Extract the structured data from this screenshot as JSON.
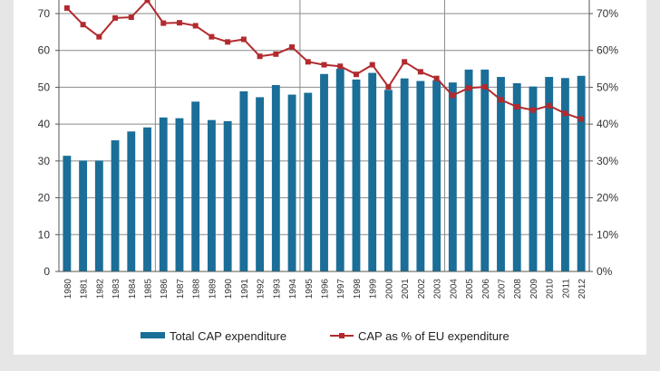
{
  "chart_data": {
    "type": "bar",
    "title": "",
    "xlabel": "",
    "ylabel": "",
    "categories": [
      "1980",
      "1981",
      "1982",
      "1983",
      "1984",
      "1985",
      "1986",
      "1987",
      "1988",
      "1989",
      "1990",
      "1991",
      "1992",
      "1993",
      "1994",
      "1995",
      "1996",
      "1997",
      "1998",
      "1999",
      "2000",
      "2001",
      "2002",
      "2003",
      "2004",
      "2005",
      "2006",
      "2007",
      "2008",
      "2009",
      "2010",
      "2011",
      "2012"
    ],
    "series": [
      {
        "name": "Total CAP expenditure",
        "type": "bar",
        "axis": "left",
        "color": "#1a6e97",
        "values": [
          31.4,
          30.1,
          30.1,
          35.6,
          38.0,
          39.1,
          41.8,
          41.6,
          46.1,
          41.1,
          40.8,
          48.9,
          47.3,
          50.6,
          48.0,
          48.5,
          53.6,
          55.0,
          52.1,
          53.9,
          49.3,
          52.4,
          51.7,
          51.9,
          51.3,
          54.8,
          54.8,
          52.8,
          51.1,
          50.2,
          52.8,
          52.5,
          53.1
        ]
      },
      {
        "name": "CAP as % of EU expenditure",
        "type": "line",
        "axis": "right",
        "color": "#b22a2e",
        "values": [
          71.5,
          67.0,
          63.7,
          68.8,
          69.0,
          73.6,
          67.4,
          67.5,
          66.7,
          63.7,
          62.3,
          63.0,
          58.4,
          59.0,
          60.9,
          56.9,
          56.1,
          55.7,
          53.5,
          56.1,
          50.1,
          56.9,
          54.2,
          52.4,
          47.8,
          49.8,
          50.1,
          46.6,
          44.7,
          43.8,
          45.0,
          42.9,
          41.4
        ]
      }
    ],
    "ylim": [
      0,
      70
    ],
    "yticks": [
      "0",
      "10",
      "20",
      "30",
      "40",
      "50",
      "60",
      "70"
    ],
    "y2lim": [
      0,
      70
    ],
    "y2ticks": [
      "0%",
      "10%",
      "20%",
      "30%",
      "40%",
      "50%",
      "60%",
      "70%"
    ],
    "vertical_gridlines_after": [
      "1985",
      "1994",
      "2003"
    ],
    "grid": true,
    "legend_position": "bottom"
  }
}
